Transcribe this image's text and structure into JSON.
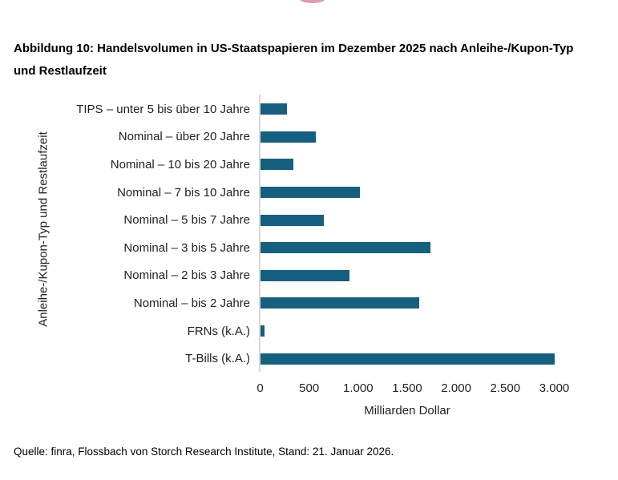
{
  "logo": {
    "fragment_color": "#d98c9b"
  },
  "title": {
    "line1": "Abbildung 10: Handelsvolumen in US-Staatspapieren im Dezember 2025 nach Anleihe-/Kupon-Typ",
    "line2": "und Restlaufzeit"
  },
  "chart_data": {
    "type": "bar",
    "orientation": "horizontal",
    "categories": [
      "TIPS – unter 5 bis über 10 Jahre",
      "Nominal – über 20 Jahre",
      "Nominal – 10 bis 20 Jahre",
      "Nominal – 7 bis 10 Jahre",
      "Nominal – 5 bis 7 Jahre",
      "Nominal – 3 bis 5 Jahre",
      "Nominal – 2 bis 3 Jahre",
      "Nominal – bis 2 Jahre",
      "FRNs (k.A.)",
      "T-Bills (k.A.)"
    ],
    "values": [
      270,
      565,
      335,
      1015,
      645,
      1730,
      910,
      1620,
      40,
      3000
    ],
    "xlabel": "Milliarden Dollar",
    "ylabel": "Anleihe-/Kupon-Typ und Restlaufzeit",
    "xlim": [
      0,
      3050
    ],
    "xticks": [
      {
        "value": 0,
        "label": "0"
      },
      {
        "value": 500,
        "label": "500"
      },
      {
        "value": 1000,
        "label": "1.000"
      },
      {
        "value": 1500,
        "label": "1.500"
      },
      {
        "value": 2000,
        "label": "2.000"
      },
      {
        "value": 2500,
        "label": "2.500"
      },
      {
        "value": 3000,
        "label": "3.000"
      }
    ],
    "bar_color": "#175f7f",
    "axis_line_color": "#d9d9d9",
    "grid": false,
    "legend": null
  },
  "source": "Quelle: finra, Flossbach von Storch Research Institute, Stand: 21. Januar 2026."
}
